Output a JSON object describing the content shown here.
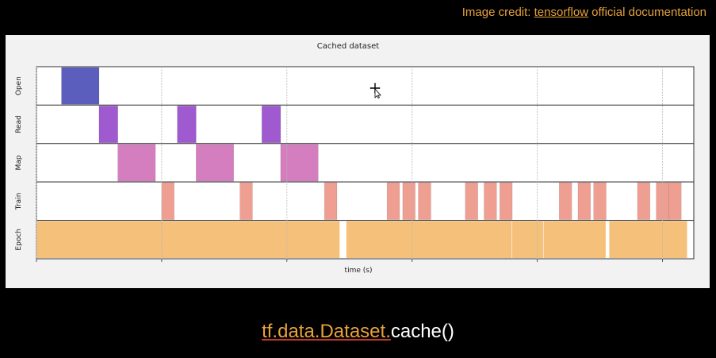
{
  "credit": {
    "prefix": "Image credit: ",
    "link_text": "tensorflow",
    "suffix": " official documentation"
  },
  "caption": {
    "api": "tf.data.Dataset.",
    "call": "cache()"
  },
  "colors": {
    "background": "#000000",
    "accent": "#e6a23c",
    "Open": "#5b5ebc",
    "Read": "#a05ad0",
    "Map": "#d47ec0",
    "Train": "#ef9e92",
    "Epoch": "#f5c07a"
  },
  "chart_data": {
    "type": "timeline",
    "title": "Cached dataset",
    "xlabel": "time (s)",
    "ylabel": "",
    "xlim": [
      0,
      10.5
    ],
    "x_ticks": [
      0,
      2,
      4,
      6,
      8,
      10
    ],
    "x_tick_labels": [],
    "grid": true,
    "rows": [
      "Open",
      "Read",
      "Map",
      "Train",
      "Epoch"
    ],
    "series": [
      {
        "name": "Open",
        "intervals": [
          [
            0.4,
            1.0
          ]
        ]
      },
      {
        "name": "Read",
        "intervals": [
          [
            1.0,
            1.3
          ],
          [
            2.25,
            2.55
          ],
          [
            3.6,
            3.9
          ]
        ]
      },
      {
        "name": "Map",
        "intervals": [
          [
            1.3,
            1.9
          ],
          [
            2.55,
            3.15
          ],
          [
            3.9,
            4.5
          ]
        ]
      },
      {
        "name": "Train",
        "intervals": [
          [
            2.0,
            2.2
          ],
          [
            3.25,
            3.45
          ],
          [
            4.6,
            4.8
          ],
          [
            5.6,
            5.8
          ],
          [
            5.85,
            6.05
          ],
          [
            6.1,
            6.3
          ],
          [
            6.85,
            7.05
          ],
          [
            7.15,
            7.35
          ],
          [
            7.4,
            7.6
          ],
          [
            8.35,
            8.55
          ],
          [
            8.65,
            8.85
          ],
          [
            8.9,
            9.1
          ],
          [
            9.6,
            9.8
          ],
          [
            9.9,
            10.1
          ],
          [
            10.1,
            10.3
          ]
        ]
      },
      {
        "name": "Epoch",
        "intervals": [
          [
            0.0,
            4.85
          ],
          [
            4.95,
            7.6
          ],
          [
            7.6,
            8.1
          ],
          [
            8.1,
            9.1
          ],
          [
            9.15,
            10.4
          ]
        ]
      }
    ]
  }
}
